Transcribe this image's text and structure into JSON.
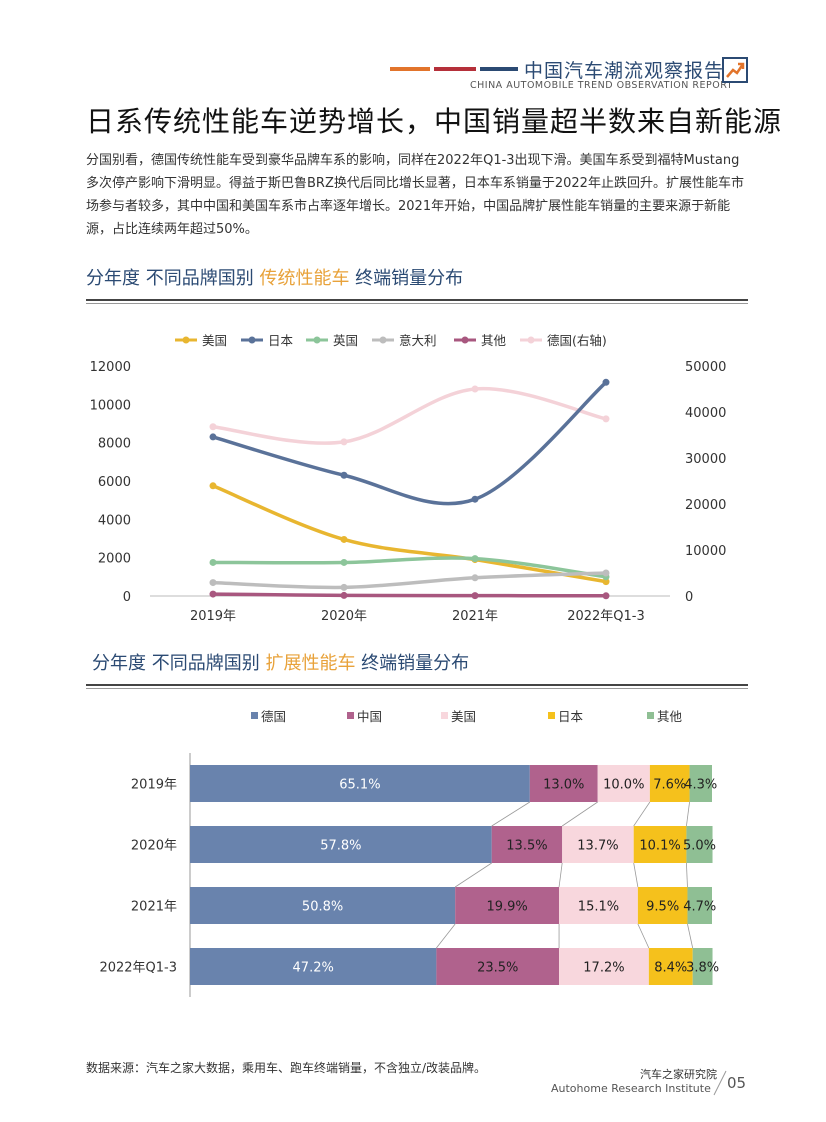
{
  "header": {
    "title": "中国汽车潮流观察报告",
    "subtitle": "CHINA AUTOMOBILE TREND OBSERVATION REPORT",
    "bar_colors": [
      "#e2742b",
      "#b5303a",
      "#2b4a73"
    ]
  },
  "title": "日系传统性能车逆势增长，中国销量超半数来自新能源",
  "intro": "分国别看，德国传统性能车受到豪华品牌车系的影响，同样在2022年Q1-3出现下滑。美国车系受到福特Mustang多次停产影响下滑明显。得益于斯巴鲁BRZ换代后同比增长显著，日本车系销量于2022年止跌回升。扩展性能车市场参与者较多，其中中国和美国车系市占率逐年增长。2021年开始，中国品牌扩展性能车销量的主要来源于新能源，占比连续两年超过50%。",
  "section1": {
    "pre": "分年度 不同品牌国别 ",
    "highlight": "传统性能车",
    "post": " 终端销量分布"
  },
  "section2": {
    "pre": "分年度 不同品牌国别 ",
    "highlight": "扩展性能车",
    "post": " 终端销量分布"
  },
  "chart_data": [
    {
      "type": "line",
      "x": [
        "2019年",
        "2020年",
        "2021年",
        "2022年Q1-3"
      ],
      "ylim": [
        0,
        12000
      ],
      "yticks": [
        0,
        2000,
        4000,
        6000,
        8000,
        10000,
        12000
      ],
      "y2lim": [
        0,
        50000
      ],
      "y2ticks": [
        0,
        10000,
        20000,
        30000,
        40000,
        50000
      ],
      "legend_position": "top",
      "series": [
        {
          "name": "美国",
          "axis": "left",
          "color": "#e8b630",
          "values": [
            5750,
            2950,
            1900,
            750
          ]
        },
        {
          "name": "日本",
          "axis": "left",
          "color": "#5a7299",
          "values": [
            8300,
            6300,
            5050,
            11150
          ]
        },
        {
          "name": "英国",
          "axis": "left",
          "color": "#8cc59a",
          "values": [
            1750,
            1750,
            1950,
            1000
          ]
        },
        {
          "name": "意大利",
          "axis": "left",
          "color": "#bdbdbd",
          "values": [
            700,
            450,
            950,
            1200
          ]
        },
        {
          "name": "其他",
          "axis": "left",
          "color": "#a8577f",
          "values": [
            100,
            30,
            20,
            10
          ]
        },
        {
          "name": "德国(右轴)",
          "axis": "right",
          "color": "#f4d2d8",
          "values": [
            36800,
            33500,
            45000,
            38500
          ]
        }
      ]
    },
    {
      "type": "bar",
      "orientation": "horizontal",
      "stacked": true,
      "normalized": true,
      "categories": [
        "2019年",
        "2020年",
        "2021年",
        "2022年Q1-3"
      ],
      "legend_position": "top",
      "series": [
        {
          "name": "德国",
          "color": "#6983ad",
          "label_color": "#ffffff",
          "values": [
            65.1,
            57.8,
            50.8,
            47.2
          ],
          "labels": [
            "65.1%",
            "57.8%",
            "50.8%",
            "47.2%"
          ]
        },
        {
          "name": "中国",
          "color": "#b0628d",
          "label_color": "#222222",
          "values": [
            13.0,
            13.5,
            19.9,
            23.5
          ],
          "labels": [
            "13.0%",
            "13.5%",
            "19.9%",
            "23.5%"
          ]
        },
        {
          "name": "美国",
          "color": "#f8d7dd",
          "label_color": "#222222",
          "values": [
            10.0,
            13.7,
            15.1,
            17.2
          ],
          "labels": [
            "10.0%",
            "13.7%",
            "15.1%",
            "17.2%"
          ]
        },
        {
          "name": "日本",
          "color": "#f5c11c",
          "label_color": "#222222",
          "values": [
            7.6,
            10.1,
            9.5,
            8.4
          ],
          "labels": [
            "7.6%",
            "10.1%",
            "9.5%",
            "8.4%"
          ]
        },
        {
          "name": "其他",
          "color": "#8fbf94",
          "label_color": "#222222",
          "values": [
            4.3,
            5.0,
            4.7,
            3.8
          ],
          "labels": [
            "4.3%",
            "5.0%",
            "4.7%",
            "3.8%"
          ]
        }
      ]
    }
  ],
  "source": "数据来源：汽车之家大数据，乘用车、跑车终端销量，不含独立/改装品牌。",
  "footer": {
    "org_cn": "汽车之家研究院",
    "org_en": "Autohome Research Institute",
    "page": "05"
  }
}
